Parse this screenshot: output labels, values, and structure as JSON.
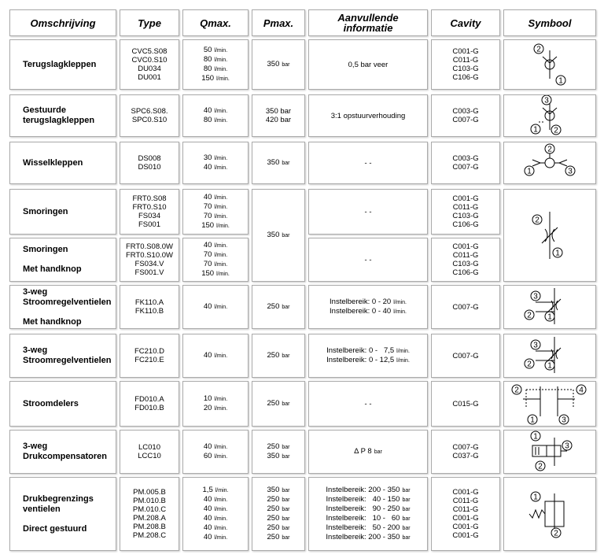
{
  "header": [
    "Omschrijving",
    "Type",
    "Qmax.",
    "Pmax.",
    [
      "Aanvullende",
      "informatie"
    ],
    "Cavity",
    "Symbool"
  ],
  "rows": [
    {
      "omschrijving": [
        [
          "Terugslagkleppen"
        ]
      ],
      "type": [
        "CVC5.S08",
        "CVC0.S10",
        "DU034",
        "DU001"
      ],
      "qmax": [
        {
          "t": "50",
          "u": "l/min."
        },
        {
          "t": "80",
          "u": "l/min."
        },
        {
          "t": "80",
          "u": "l/min."
        },
        {
          "t": "150",
          "u": "l/min."
        }
      ],
      "pmax": [
        {
          "t": "350",
          "u": "bar"
        }
      ],
      "info": [
        {
          "t": "0,5 bar veer"
        }
      ],
      "cavity": [
        "C001-G",
        "C011-G",
        "C103-G",
        "C106-G"
      ],
      "symbool": [
        "2",
        "1"
      ]
    },
    {
      "omschrijving": [
        [
          "Gestuurde",
          "terugslagkleppen"
        ]
      ],
      "type": [
        "SPC6.S08.",
        "SPC0.S10"
      ],
      "qmax": [
        {
          "t": "40",
          "u": "l/min."
        },
        {
          "t": "80",
          "u": "l/min."
        }
      ],
      "pmax": [
        {
          "t": "350 bar"
        },
        {
          "t": "420 bar"
        }
      ],
      "info": [
        {
          "t": "3:1 opstuurverhouding"
        }
      ],
      "cavity": [
        "C003-G",
        "C007-G"
      ],
      "symbool": [
        "3",
        "1",
        "2"
      ]
    },
    {
      "omschrijving": [
        [
          "Wisselkleppen"
        ]
      ],
      "type": [
        "DS008",
        "DS010"
      ],
      "qmax": [
        {
          "t": "30",
          "u": "l/min."
        },
        {
          "t": "40",
          "u": "l/min."
        }
      ],
      "pmax": [
        {
          "t": "350",
          "u": "bar"
        }
      ],
      "info": [
        {
          "t": "- -"
        }
      ],
      "cavity": [
        "C003-G",
        "C007-G"
      ],
      "symbool": [
        "2",
        "1",
        "3"
      ]
    },
    {
      "omschrijving": [
        [
          "Smoringen"
        ]
      ],
      "type": [
        "FRT0.S08",
        "FRT0.S10",
        "FS034",
        "FS001"
      ],
      "qmax": [
        {
          "t": "40",
          "u": "l/min."
        },
        {
          "t": "70",
          "u": "l/min."
        },
        {
          "t": "70",
          "u": "l/min."
        },
        {
          "t": "150",
          "u": "l/min."
        }
      ],
      "pmax": [
        {
          "t": "350",
          "u": "bar"
        }
      ],
      "info": [
        {
          "t": "- -"
        }
      ],
      "cavity": [
        "C001-G",
        "C011-G",
        "C103-G",
        "C106-G"
      ],
      "symbool": [
        "2",
        "1"
      ]
    },
    {
      "omschrijving": [
        [
          "Smoringen"
        ],
        [
          "Met handknop"
        ]
      ],
      "type": [
        "FRT0.S08.0W",
        "FRT0.S10.0W",
        "FS034.V",
        "FS001.V"
      ],
      "qmax": [
        {
          "t": "40",
          "u": "l/min."
        },
        {
          "t": "70",
          "u": "l/min."
        },
        {
          "t": "70",
          "u": "l/min."
        },
        {
          "t": "150",
          "u": "l/min."
        }
      ],
      "info": [
        {
          "t": "- -"
        }
      ],
      "cavity": [
        "C001-G",
        "C011-G",
        "C103-G",
        "C106-G"
      ]
    },
    {
      "omschrijving": [
        [
          "3-weg",
          "Stroomregelventielen"
        ],
        [
          "Met handknop"
        ]
      ],
      "type": [
        "FK110.A",
        "FK110.B"
      ],
      "qmax": [
        {
          "t": "40",
          "u": "l/min."
        }
      ],
      "pmax": [
        {
          "t": "250",
          "u": "bar"
        }
      ],
      "info": [
        {
          "t": "Instelbereik: 0 - 20",
          "u": "l/min."
        },
        {
          "t": "Instelbereik: 0 - 40",
          "u": "l/min."
        }
      ],
      "cavity": [
        "C007-G"
      ],
      "symbool": [
        "3",
        "2",
        "1"
      ]
    },
    {
      "omschrijving": [
        [
          "3-weg",
          "Stroomregelventielen"
        ]
      ],
      "type": [
        "FC210.D",
        "FC210.E"
      ],
      "qmax": [
        {
          "t": "40",
          "u": "l/min."
        }
      ],
      "pmax": [
        {
          "t": "250",
          "u": "bar"
        }
      ],
      "info": [
        {
          "t": "Instelbereik: 0 -   7,5",
          "u": "l/min."
        },
        {
          "t": "Instelbereik: 0 - 12,5",
          "u": "l/min."
        }
      ],
      "cavity": [
        "C007-G"
      ],
      "symbool": [
        "3",
        "2",
        "1"
      ]
    },
    {
      "omschrijving": [
        [
          "Stroomdelers"
        ]
      ],
      "type": [
        "FD010.A",
        "FD010.B"
      ],
      "qmax": [
        {
          "t": "10",
          "u": "l/min."
        },
        {
          "t": "20",
          "u": "l/min."
        }
      ],
      "pmax": [
        {
          "t": "250",
          "u": "bar"
        }
      ],
      "info": [
        {
          "t": "- -"
        }
      ],
      "cavity": [
        "C015-G"
      ],
      "symbool": [
        "2",
        "4",
        "1",
        "3"
      ]
    },
    {
      "omschrijving": [
        [
          "3-weg",
          "Drukcompensatoren"
        ]
      ],
      "type": [
        "LC010",
        "LCC10"
      ],
      "qmax": [
        {
          "t": "40",
          "u": "l/min."
        },
        {
          "t": "60",
          "u": "l/min."
        }
      ],
      "pmax": [
        {
          "t": "250",
          "u": "bar"
        },
        {
          "t": "350",
          "u": "bar"
        }
      ],
      "info": [
        {
          "t": "Δ P 8",
          "u": "bar"
        }
      ],
      "cavity": [
        "C007-G",
        "C037-G"
      ],
      "symbool": [
        "1",
        "3",
        "2"
      ]
    },
    {
      "omschrijving": [
        [
          "Drukbegrenzings",
          "ventielen"
        ],
        [
          "Direct gestuurd"
        ]
      ],
      "type": [
        "PM.005.B",
        "PM.010.B",
        "PM.010.C",
        "PM.208.A",
        "PM.208.B",
        "PM.208.C"
      ],
      "qmax": [
        {
          "t": "1,5",
          "u": "l/min."
        },
        {
          "t": "40",
          "u": "l/min."
        },
        {
          "t": "40",
          "u": "l/min."
        },
        {
          "t": "40",
          "u": "l/min."
        },
        {
          "t": "40",
          "u": "l/min."
        },
        {
          "t": "40",
          "u": "l/min."
        }
      ],
      "pmax": [
        {
          "t": "350",
          "u": "bar"
        },
        {
          "t": "250",
          "u": "bar"
        },
        {
          "t": "250",
          "u": "bar"
        },
        {
          "t": "250",
          "u": "bar"
        },
        {
          "t": "250",
          "u": "bar"
        },
        {
          "t": "250",
          "u": "bar"
        }
      ],
      "info": [
        {
          "t": "Instelbereik: 200 - 350",
          "u": "bar"
        },
        {
          "t": "Instelbereik:   40 - 150",
          "u": "bar"
        },
        {
          "t": "Instelbereik:   90 - 250",
          "u": "bar"
        },
        {
          "t": "Instelbereik:   10 -   60",
          "u": "bar"
        },
        {
          "t": "Instelbereik:   50 - 200",
          "u": "bar"
        },
        {
          "t": "Instelbereik: 200 - 350",
          "u": "bar"
        }
      ],
      "cavity": [
        "C001-G",
        "C011-G",
        "C011-G",
        "C001-G",
        "C001-G",
        "C001-G"
      ],
      "symbool": [
        "1",
        "2"
      ]
    }
  ]
}
